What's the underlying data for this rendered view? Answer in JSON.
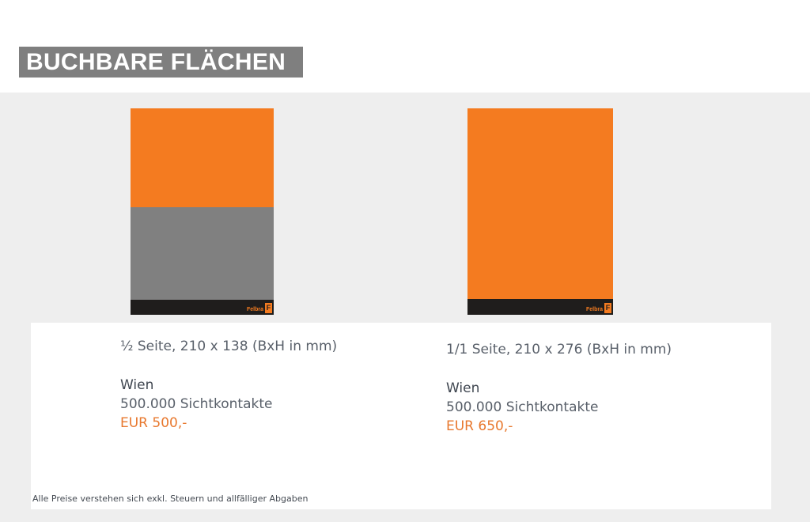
{
  "header": {
    "title": "BUCHBARE FLÄCHEN"
  },
  "colors": {
    "accent": "#f47b20",
    "gray_area": "#808080",
    "footer_bar": "#1f1d1c",
    "price_text": "#e8782e"
  },
  "options": [
    {
      "format": "½ Seite, 210 x 138 (BxH in mm)",
      "city": "Wien",
      "contacts": "500.000 Sichtkontakte",
      "price": "EUR 500,-",
      "orange_share": 0.5,
      "logo": {
        "small": "powered by",
        "brand": "Felbra",
        "mark": "F"
      }
    },
    {
      "format": "1/1 Seite, 210 x 276 (BxH in mm)",
      "city": "Wien",
      "contacts": "500.000 Sichtkontakte",
      "price": "EUR 650,-",
      "orange_share": 1,
      "logo": {
        "small": "powered by",
        "brand": "Felbra",
        "mark": "F"
      }
    }
  ],
  "footer": {
    "disclaimer": "Alle Preise verstehen sich exkl. Steuern und allfälliger Abgaben"
  }
}
